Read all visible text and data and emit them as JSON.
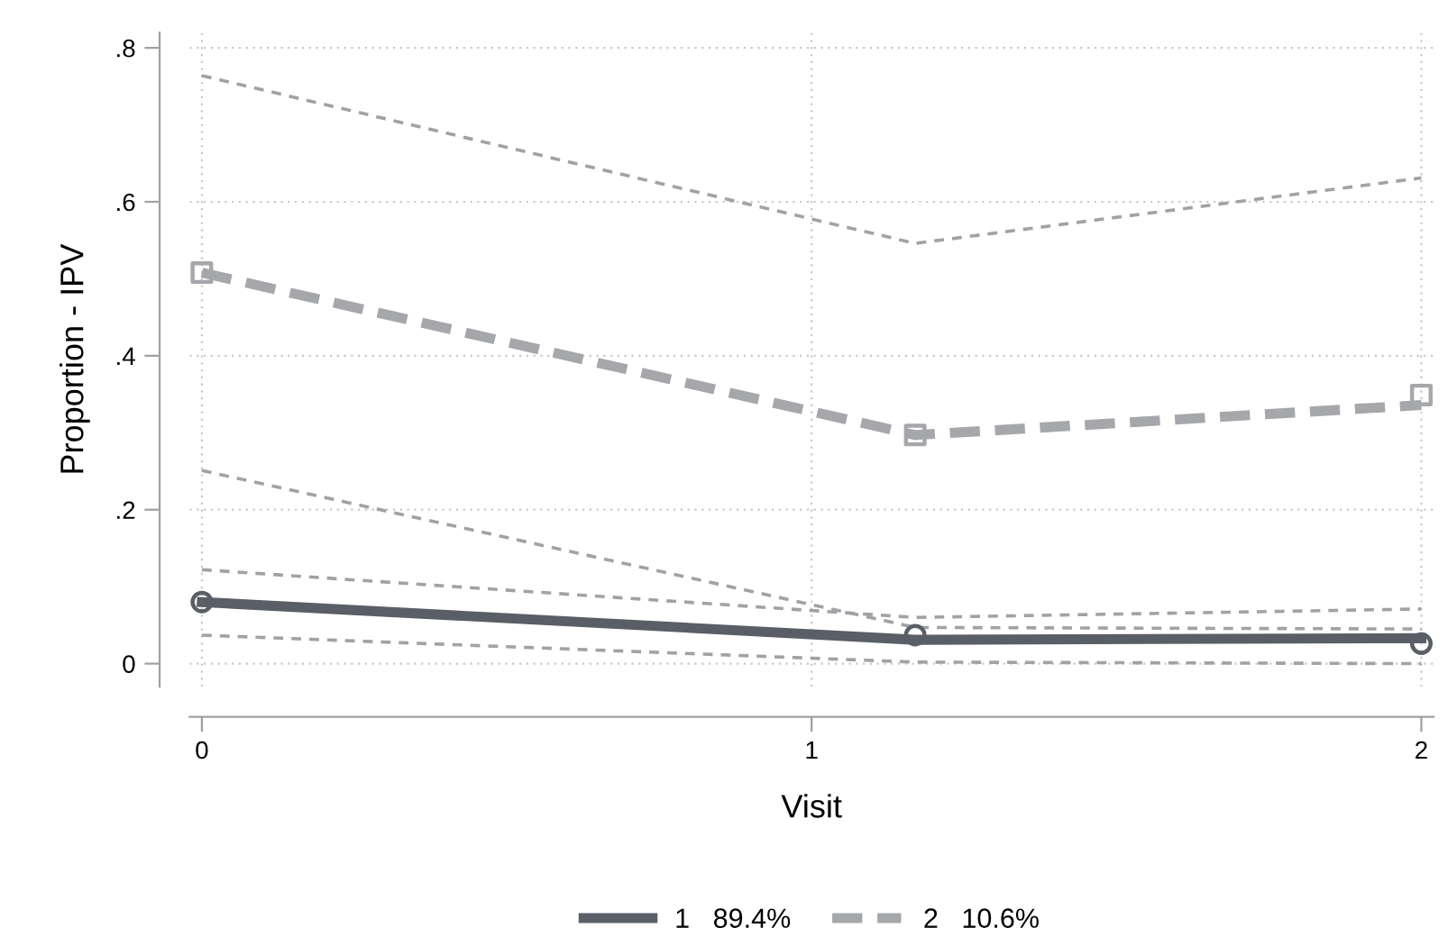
{
  "chart_data": {
    "type": "line",
    "xlabel": "Visit",
    "ylabel": "Proportion - IPV",
    "series": [
      {
        "color": "#a0a2a6",
        "line_style": "dashed",
        "x": [
          0,
          1.17,
          2
        ],
        "values": [
          0.122,
          0.06,
          0.071
        ]
      },
      {
        "color": "#a0a2a6",
        "line_style": "dashed",
        "x": [
          0,
          1.17,
          2
        ],
        "values": [
          0.037,
          0.002,
          0.0
        ]
      },
      {
        "color": "#a0a2a6",
        "line_style": "dashed",
        "x": [
          0,
          1.17,
          2
        ],
        "values": [
          0.764,
          0.546,
          0.631
        ]
      },
      {
        "color": "#a0a2a6",
        "line_style": "dashed",
        "x": [
          0,
          1.17,
          2
        ],
        "values": [
          0.251,
          0.047,
          0.045
        ]
      },
      {
        "name": "1   89.4%",
        "color": "#5a5e66",
        "line_style": "solid",
        "x": [
          0,
          1.17,
          2
        ],
        "values": [
          0.08,
          0.031,
          0.033
        ]
      },
      {
        "name": "2   10.6%",
        "color": "#a5a7ab",
        "line_style": "dashed",
        "x": [
          0,
          1.17,
          2
        ],
        "values": [
          0.508,
          0.297,
          0.336
        ]
      },
      {
        "type": "scatter",
        "color": "#5a5e66",
        "marker": "circle",
        "x": [
          0,
          1.17,
          2
        ],
        "values": [
          0.08,
          0.037,
          0.026
        ]
      },
      {
        "type": "scatter",
        "color": "#a5a7ab",
        "marker": "square",
        "x": [
          0,
          1.17,
          2
        ],
        "values": [
          0.508,
          0.297,
          0.349
        ]
      }
    ],
    "xlim": [
      -0.02,
      2.02
    ],
    "xticks": [
      0,
      1,
      2
    ],
    "ylim": [
      -0.03,
      0.82
    ],
    "yticks": [
      0,
      {
        "value": 0.2,
        "label": ".2"
      },
      {
        "value": 0.4,
        "label": ".4"
      },
      {
        "value": 0.6,
        "label": ".6"
      },
      {
        "value": 0.8,
        "label": ".8"
      }
    ],
    "grid": true,
    "legend": "bottom"
  }
}
